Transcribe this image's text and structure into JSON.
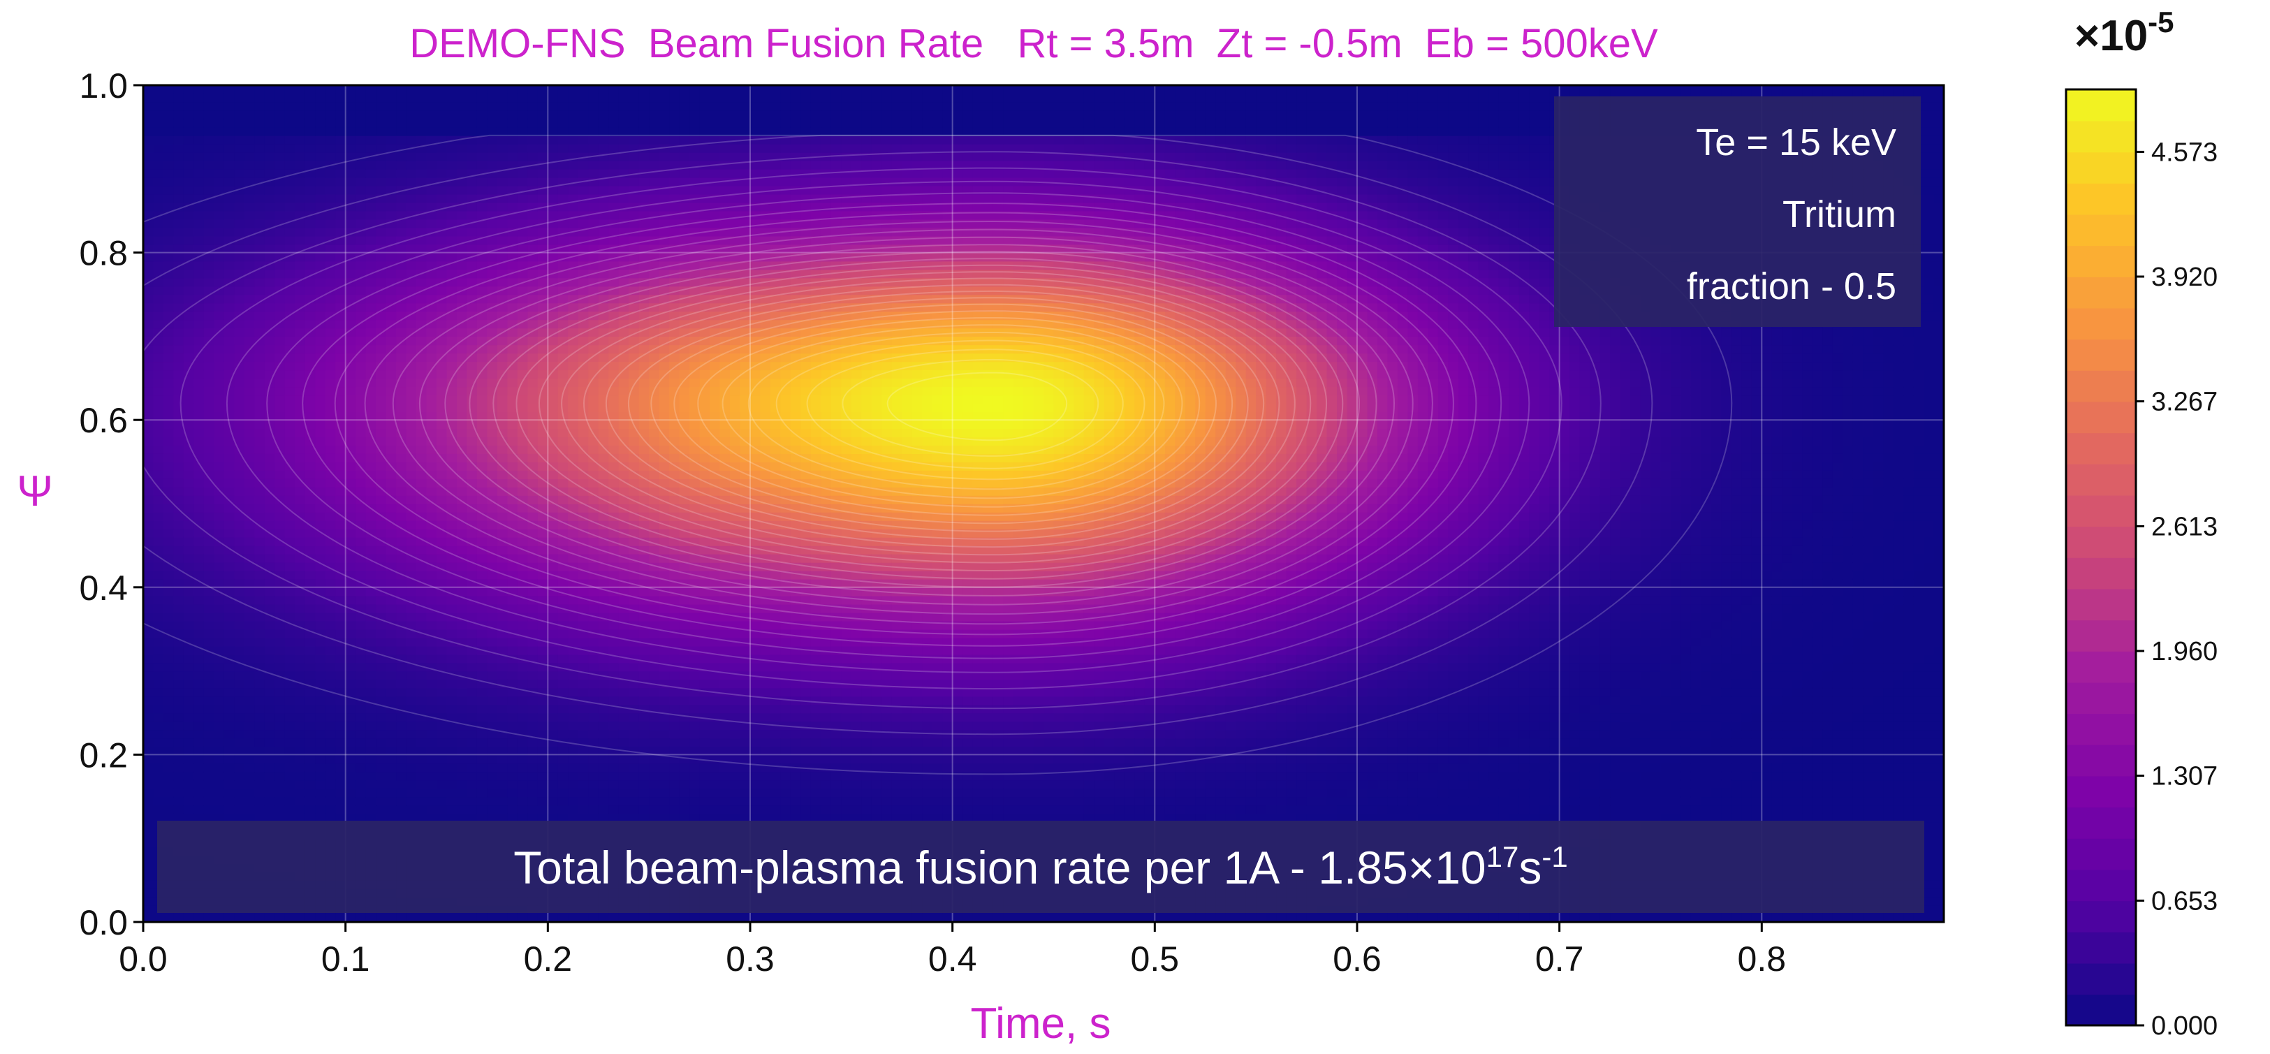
{
  "chart_data": {
    "type": "heatmap",
    "title": "DEMO-FNS  Beam Fusion Rate   Rt = 3.5m  Zt = -0.5m  Eb = 500keV",
    "xlabel": "Time, s",
    "ylabel": "Ψ",
    "xlim": [
      0.0,
      0.89
    ],
    "ylim": [
      0.0,
      1.0
    ],
    "x_ticks": [
      "0.0",
      "0.1",
      "0.2",
      "0.3",
      "0.4",
      "0.5",
      "0.6",
      "0.7",
      "0.8"
    ],
    "y_ticks": [
      "0.0",
      "0.2",
      "0.4",
      "0.6",
      "0.8",
      "1.0"
    ],
    "grid": true,
    "colormap": "plasma",
    "colorbar": {
      "multiplier": "×10",
      "exponent": "-5",
      "range": [
        0.0,
        4.9
      ],
      "ticks": [
        "0.000",
        "0.653",
        "1.307",
        "1.960",
        "2.613",
        "3.267",
        "3.920",
        "4.573"
      ]
    },
    "peak": {
      "time_s": 0.42,
      "psi": 0.62,
      "value": 4.9
    },
    "distribution": {
      "time_sigma_left": 0.2,
      "time_sigma_right": 0.14,
      "psi_sigma_low": 0.17,
      "psi_sigma_high": 0.14,
      "psi_cutoff_upper": 0.94
    },
    "annotations": {
      "box_lines": [
        "Te = 15 keV",
        "Tritium",
        "fraction - 0.5"
      ],
      "total_rate_text": "Total beam-plasma fusion rate per 1A - 1.85×10",
      "total_rate_exponent": "17",
      "total_rate_unit": "s",
      "total_rate_unit_exponent": "-1"
    }
  }
}
